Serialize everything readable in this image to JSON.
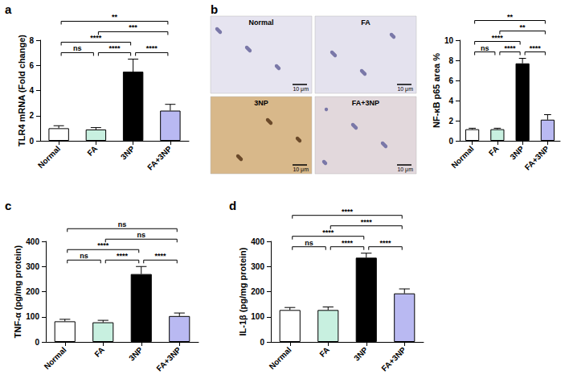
{
  "chart_data": [
    {
      "panel": "a",
      "type": "bar",
      "y_label": "TLR4 mRNA (Fold change)",
      "categories": [
        "Normal",
        "FA",
        "3NP",
        "FA+3NP"
      ],
      "values": [
        1.0,
        0.9,
        5.5,
        2.4
      ],
      "errors": [
        0.2,
        0.15,
        1.0,
        0.5
      ],
      "colors": [
        "#ffffff",
        "#c8f0e0",
        "#000000",
        "#b9b9f2"
      ],
      "ylim": [
        0,
        8
      ],
      "yticks": [
        0,
        2,
        4,
        6,
        8
      ],
      "grid": false,
      "comparisons": [
        {
          "from": "Normal",
          "to": "FA",
          "label": "ns"
        },
        {
          "from": "FA",
          "to": "3NP",
          "label": "****"
        },
        {
          "from": "3NP",
          "to": "FA+3NP",
          "label": "****"
        },
        {
          "from": "Normal",
          "to": "3NP",
          "label": "****"
        },
        {
          "from": "FA",
          "to": "FA+3NP",
          "label": "***"
        },
        {
          "from": "Normal",
          "to": "FA+3NP",
          "label": "**"
        }
      ]
    },
    {
      "panel": "b",
      "type": "bar",
      "y_label": "NF-κB p65 area %",
      "categories": [
        "Normal",
        "FA",
        "3NP",
        "FA+3NP"
      ],
      "values": [
        1.15,
        1.15,
        7.7,
        2.1
      ],
      "errors": [
        0.1,
        0.1,
        0.5,
        0.5
      ],
      "colors": [
        "#ffffff",
        "#c8f0e0",
        "#000000",
        "#b9b9f2"
      ],
      "ylim": [
        0,
        10
      ],
      "yticks": [
        0,
        2,
        4,
        6,
        8,
        10
      ],
      "grid": false,
      "images": [
        {
          "label": "Normal",
          "scale_bar": "10 μm"
        },
        {
          "label": "FA",
          "scale_bar": "10 μm"
        },
        {
          "label": "3NP",
          "scale_bar": "10 μm"
        },
        {
          "label": "FA+3NP",
          "scale_bar": "10 μm"
        }
      ],
      "comparisons": [
        {
          "from": "Normal",
          "to": "FA",
          "label": "ns"
        },
        {
          "from": "FA",
          "to": "3NP",
          "label": "****"
        },
        {
          "from": "3NP",
          "to": "FA+3NP",
          "label": "****"
        },
        {
          "from": "Normal",
          "to": "3NP",
          "label": "****"
        },
        {
          "from": "FA",
          "to": "FA+3NP",
          "label": "**"
        },
        {
          "from": "Normal",
          "to": "FA+3NP",
          "label": "**"
        }
      ]
    },
    {
      "panel": "c",
      "type": "bar",
      "y_label": "TNF-α (pg/mg protein)",
      "categories": [
        "Normal",
        "FA",
        "3NP",
        "FA+3NP"
      ],
      "values": [
        82,
        78,
        270,
        103
      ],
      "errors": [
        8,
        8,
        30,
        12
      ],
      "colors": [
        "#ffffff",
        "#c8f0e0",
        "#000000",
        "#b9b9f2"
      ],
      "ylim": [
        0,
        400
      ],
      "yticks": [
        0,
        100,
        200,
        300,
        400
      ],
      "grid": false,
      "comparisons": [
        {
          "from": "Normal",
          "to": "FA",
          "label": "ns"
        },
        {
          "from": "FA",
          "to": "3NP",
          "label": "****"
        },
        {
          "from": "3NP",
          "to": "FA+3NP",
          "label": "****"
        },
        {
          "from": "Normal",
          "to": "3NP",
          "label": "****"
        },
        {
          "from": "FA",
          "to": "FA+3NP",
          "label": "ns"
        },
        {
          "from": "Normal",
          "to": "FA+3NP",
          "label": "ns"
        }
      ]
    },
    {
      "panel": "d",
      "type": "bar",
      "y_label": "IL-1β (pg/mg protein)",
      "categories": [
        "Normal",
        "FA",
        "3NP",
        "FA+3NP"
      ],
      "values": [
        127,
        127,
        335,
        193
      ],
      "errors": [
        10,
        12,
        18,
        18
      ],
      "colors": [
        "#ffffff",
        "#c8f0e0",
        "#000000",
        "#b9b9f2"
      ],
      "ylim": [
        0,
        400
      ],
      "yticks": [
        0,
        100,
        200,
        300,
        400
      ],
      "grid": false,
      "comparisons": [
        {
          "from": "Normal",
          "to": "FA",
          "label": "ns"
        },
        {
          "from": "FA",
          "to": "3NP",
          "label": "****"
        },
        {
          "from": "3NP",
          "to": "FA+3NP",
          "label": "****"
        },
        {
          "from": "Normal",
          "to": "3NP",
          "label": "****"
        },
        {
          "from": "FA",
          "to": "FA+3NP",
          "label": "****"
        },
        {
          "from": "Normal",
          "to": "FA+3NP",
          "label": "****"
        }
      ]
    }
  ]
}
